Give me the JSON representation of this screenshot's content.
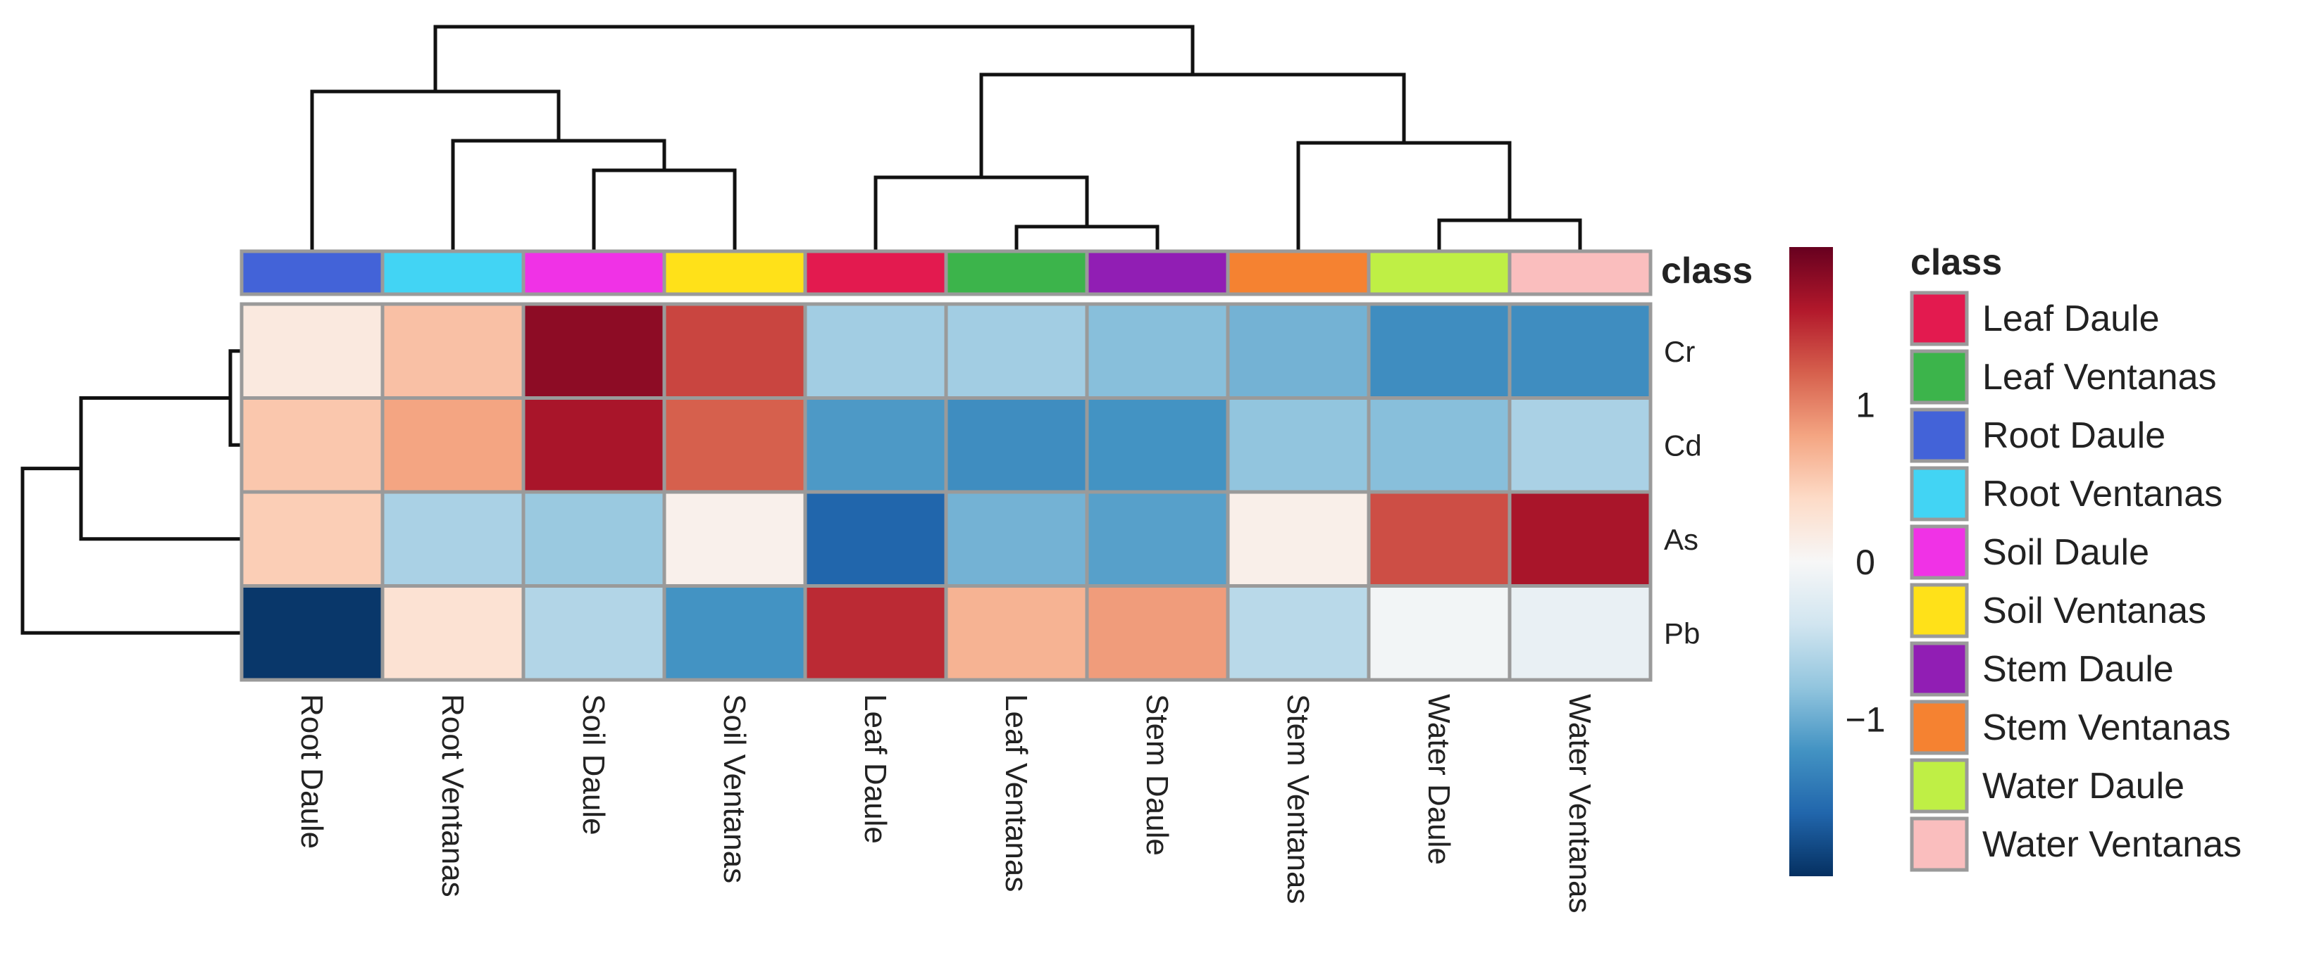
{
  "chart_data": {
    "type": "heatmap",
    "columns": [
      "Root Daule",
      "Root Ventanas",
      "Soil Daule",
      "Soil Ventanas",
      "Leaf Daule",
      "Leaf Ventanas",
      "Stem Daule",
      "Stem Ventanas",
      "Water Daule",
      "Water Ventanas"
    ],
    "rows": [
      "Cr",
      "Cd",
      "As",
      "Pb"
    ],
    "values": [
      [
        0.2,
        0.6,
        1.8,
        1.35,
        -0.7,
        -0.7,
        -0.85,
        -0.95,
        -1.25,
        -1.25
      ],
      [
        0.55,
        0.8,
        1.65,
        1.2,
        -1.15,
        -1.25,
        -1.2,
        -0.8,
        -0.85,
        -0.65
      ],
      [
        0.5,
        -0.65,
        -0.75,
        0.1,
        -1.6,
        -0.95,
        -1.1,
        0.12,
        1.3,
        1.65
      ],
      [
        -1.95,
        0.3,
        -0.6,
        -1.2,
        1.5,
        0.7,
        0.85,
        -0.55,
        -0.05,
        -0.15
      ]
    ],
    "annotation": {
      "title": "class",
      "column_classes": [
        "Root Daule",
        "Root Ventanas",
        "Soil Daule",
        "Soil Ventanas",
        "Leaf Daule",
        "Leaf Ventanas",
        "Stem Daule",
        "Stem Ventanas",
        "Water Daule",
        "Water Ventanas"
      ]
    },
    "legend": {
      "title": "class",
      "entries": [
        {
          "label": "Leaf Daule",
          "color": "#e31a4f"
        },
        {
          "label": "Leaf Ventanas",
          "color": "#3cb44b"
        },
        {
          "label": "Root Daule",
          "color": "#4363d8"
        },
        {
          "label": "Root Ventanas",
          "color": "#42d4f4"
        },
        {
          "label": "Soil Daule",
          "color": "#f032e6"
        },
        {
          "label": "Soil Ventanas",
          "color": "#ffe119"
        },
        {
          "label": "Stem Daule",
          "color": "#911eb4"
        },
        {
          "label": "Stem Ventanas",
          "color": "#f58231"
        },
        {
          "label": "Water Daule",
          "color": "#bfef45"
        },
        {
          "label": "Water Ventanas",
          "color": "#fabebe"
        }
      ]
    },
    "colorbar": {
      "range": [
        -2,
        2
      ],
      "ticks": [
        {
          "value": 1,
          "label": "1"
        },
        {
          "value": 0,
          "label": "0"
        },
        {
          "value": -1,
          "label": "−1"
        }
      ],
      "stops": [
        "#053061",
        "#2166ac",
        "#4393c3",
        "#92c5de",
        "#d1e5f0",
        "#f7f7f7",
        "#fddbc7",
        "#f4a582",
        "#d6604d",
        "#b2182b",
        "#67001f"
      ]
    },
    "column_dendrogram": {
      "leaf_order": [
        "Root Daule",
        "Root Ventanas",
        "Soil Daule",
        "Soil Ventanas",
        "Leaf Daule",
        "Leaf Ventanas",
        "Stem Daule",
        "Stem Ventanas",
        "Water Daule",
        "Water Ventanas"
      ]
    },
    "row_dendrogram": {
      "leaf_order": [
        "Cr",
        "Cd",
        "As",
        "Pb"
      ]
    }
  }
}
